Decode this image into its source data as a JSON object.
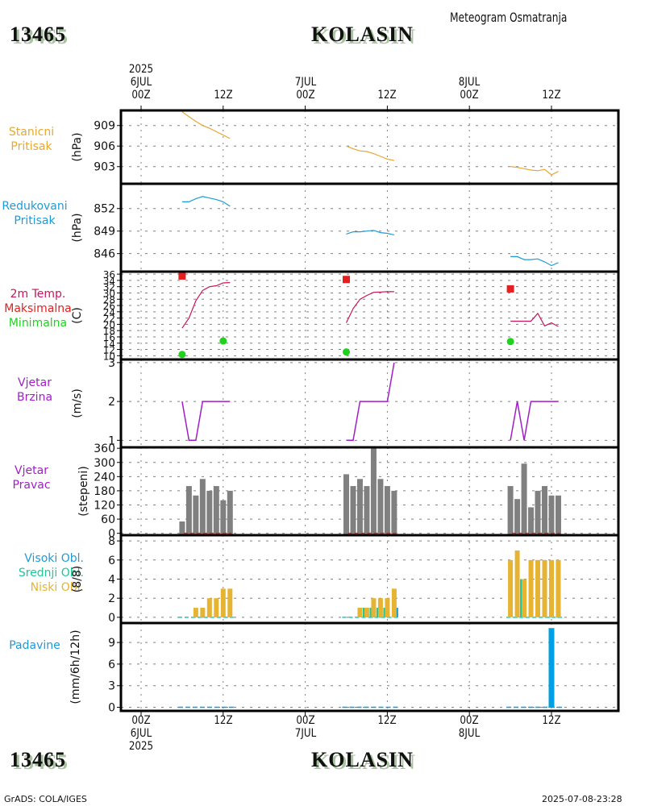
{
  "header": {
    "station_id": "13465",
    "station_name": "KOLASIN",
    "title": "Meteogram Osmatranja"
  },
  "footer": {
    "station_id": "13465",
    "station_name": "KOLASIN",
    "credit": "GrADS: COLA/IGES",
    "timestamp": "2025-07-08-23:28"
  },
  "time_axis": {
    "start_year": "2025",
    "ticks": [
      {
        "hour": 0,
        "label": "00Z",
        "date": "6JUL"
      },
      {
        "hour": 12,
        "label": "12Z",
        "date": ""
      },
      {
        "hour": 24,
        "label": "00Z",
        "date": "7JUL"
      },
      {
        "hour": 36,
        "label": "12Z",
        "date": ""
      },
      {
        "hour": 48,
        "label": "00Z",
        "date": "8JUL"
      },
      {
        "hour": 60,
        "label": "12Z",
        "date": ""
      }
    ],
    "range_hours": [
      -3,
      70
    ]
  },
  "panels": {
    "station_pressure": {
      "label1": "Stanicni",
      "label2": "Pritisak",
      "unit": "(hPa)",
      "color": "#e6a832"
    },
    "reduced_pressure": {
      "label1": "Redukovani",
      "label2": "Pritisak",
      "unit": "(hPa)",
      "color": "#1e9bd7"
    },
    "temperature": {
      "label1": "2m Temp.",
      "label2": "Maksimalna",
      "label3": "Minimalna",
      "unit": "(C)",
      "color_temp": "#c8145a",
      "color_max": "#e61e1e",
      "color_min": "#1ed21e"
    },
    "wind_speed": {
      "label1": "Vjetar",
      "label2": "Brzina",
      "unit": "(m/s)",
      "color": "#a01ec8"
    },
    "wind_dir": {
      "label1": "Vjetar",
      "label2": "Pravac",
      "unit": "(stepeni)",
      "color": "#a01ec8",
      "bar_color": "#808080"
    },
    "clouds": {
      "label1": "Visoki Obl.",
      "label2": "Srednji Obl.",
      "label3": "Niski Obl.",
      "unit": "(8/8)",
      "color_high": "#1e9bd7",
      "color_mid": "#1ec896",
      "color_low": "#e6b432"
    },
    "precip": {
      "label1": "Padavine",
      "unit": "(mm/6h/12h)",
      "color": "#00a0e6"
    }
  },
  "chart_data": [
    {
      "type": "line",
      "title": "Stanicni Pritisak",
      "ylabel": "(hPa)",
      "yticks": [
        903,
        906,
        909
      ],
      "ylim": [
        900.5,
        911.2
      ],
      "grid": true,
      "series": [
        {
          "name": "Stanicni Pritisak",
          "segments": [
            {
              "x": [
                6,
                7,
                8,
                9,
                10,
                11,
                12,
                13
              ],
              "y": [
                911.0,
                910.3,
                909.6,
                909.0,
                908.6,
                908.1,
                907.6,
                907.1
              ]
            },
            {
              "x": [
                30,
                31,
                32,
                33,
                34,
                35,
                36,
                37
              ],
              "y": [
                906.0,
                905.6,
                905.3,
                905.2,
                904.9,
                904.5,
                904.1,
                903.9
              ]
            },
            {
              "x": [
                54,
                55,
                56,
                57,
                58,
                59,
                60,
                61
              ],
              "y": [
                903.0,
                902.9,
                902.7,
                902.5,
                902.4,
                902.6,
                901.8,
                902.3
              ]
            }
          ]
        }
      ]
    },
    {
      "type": "line",
      "title": "Redukovani Pritisak",
      "ylabel": "(hPa)",
      "yticks": [
        846,
        849,
        852
      ],
      "ylim": [
        843.6,
        855.3
      ],
      "grid": true,
      "series": [
        {
          "name": "Redukovani Pritisak",
          "segments": [
            {
              "x": [
                6,
                7,
                8,
                9,
                10,
                11,
                12,
                13
              ],
              "y": [
                852.9,
                852.9,
                853.3,
                853.6,
                853.4,
                853.2,
                852.9,
                852.3
              ]
            },
            {
              "x": [
                30,
                31,
                32,
                33,
                34,
                35,
                36,
                37
              ],
              "y": [
                848.6,
                848.9,
                848.9,
                849.0,
                849.1,
                848.8,
                848.7,
                848.5
              ]
            },
            {
              "x": [
                54,
                55,
                56,
                57,
                58,
                59,
                60,
                61
              ],
              "y": [
                845.6,
                845.6,
                845.2,
                845.2,
                845.3,
                844.9,
                844.4,
                844.8
              ]
            }
          ]
        }
      ]
    },
    {
      "type": "line",
      "title": "2m Temp. / Maksimalna / Minimalna",
      "ylabel": "(C)",
      "yticks": [
        10,
        12,
        14,
        16,
        18,
        20,
        22,
        24,
        26,
        28,
        30,
        32,
        34,
        36
      ],
      "ylim": [
        8.8,
        36.8
      ],
      "grid": true,
      "series": [
        {
          "name": "2m Temp.",
          "segments": [
            {
              "x": [
                6,
                7,
                8,
                9,
                10,
                11,
                12,
                13
              ],
              "y": [
                18.8,
                22.0,
                27.5,
                30.8,
                32.0,
                32.3,
                33.2,
                33.3
              ]
            },
            {
              "x": [
                30,
                31,
                32,
                33,
                34,
                35,
                36,
                37
              ],
              "y": [
                20.5,
                25.0,
                28.0,
                29.2,
                30.2,
                30.3,
                30.4,
                30.4
              ]
            },
            {
              "x": [
                54,
                55,
                56,
                57,
                58,
                59,
                60,
                61
              ],
              "y": [
                21.0,
                21.0,
                21.0,
                21.0,
                23.5,
                19.5,
                20.5,
                19.3
              ]
            }
          ]
        },
        {
          "name": "Maksimalna",
          "points": [
            {
              "x": 6,
              "y": 35.4
            },
            {
              "x": 30,
              "y": 34.3
            },
            {
              "x": 54,
              "y": 31.3
            }
          ]
        },
        {
          "name": "Minimalna",
          "points": [
            {
              "x": 6,
              "y": 10.4
            },
            {
              "x": 12,
              "y": 14.7
            },
            {
              "x": 30,
              "y": 11.2
            },
            {
              "x": 54,
              "y": 14.5
            }
          ]
        }
      ]
    },
    {
      "type": "line",
      "title": "Vjetar Brzina",
      "ylabel": "(m/s)",
      "yticks": [
        1,
        2,
        3
      ],
      "ylim": [
        0.82,
        3.08
      ],
      "grid": true,
      "series": [
        {
          "name": "Vjetar Brzina",
          "segments": [
            {
              "x": [
                6,
                7,
                8,
                9,
                10,
                11,
                12,
                13
              ],
              "y": [
                2,
                1,
                1,
                2,
                2,
                2,
                2,
                2
              ]
            },
            {
              "x": [
                30,
                31,
                32,
                33,
                34,
                35,
                36,
                37
              ],
              "y": [
                1,
                1,
                2,
                2,
                2,
                2,
                2,
                3
              ]
            },
            {
              "x": [
                54,
                55,
                56,
                57,
                58,
                59,
                60,
                61
              ],
              "y": [
                1,
                2,
                1,
                2,
                2,
                2,
                2,
                2
              ]
            }
          ]
        }
      ]
    },
    {
      "type": "bar",
      "title": "Vjetar Pravac",
      "ylabel": "(stepeni)",
      "yticks": [
        0,
        60,
        120,
        180,
        240,
        300,
        360
      ],
      "ylim": [
        -8,
        364
      ],
      "grid": true,
      "series": [
        {
          "name": "Vjetar Pravac",
          "x": [
            6,
            7,
            8,
            9,
            10,
            11,
            12,
            13,
            30,
            31,
            32,
            33,
            34,
            35,
            36,
            37,
            54,
            55,
            56,
            57,
            58,
            59,
            60,
            61
          ],
          "values": [
            50,
            200,
            160,
            230,
            180,
            200,
            140,
            180,
            250,
            200,
            230,
            200,
            360,
            230,
            200,
            180,
            200,
            145,
            295,
            110,
            180,
            200,
            160,
            160
          ]
        }
      ]
    },
    {
      "type": "bar",
      "title": "Oblacnost",
      "ylabel": "(8/8)",
      "yticks": [
        0,
        2,
        4,
        6,
        8
      ],
      "ylim": [
        -0.6,
        8.6
      ],
      "grid": true,
      "x": [
        6,
        7,
        8,
        9,
        10,
        11,
        12,
        13,
        30,
        31,
        32,
        33,
        34,
        35,
        36,
        37,
        54,
        55,
        56,
        57,
        58,
        59,
        60,
        61
      ],
      "series": [
        {
          "name": "Visoki Obl.",
          "values": [
            0,
            0,
            0,
            0,
            0,
            0,
            0,
            0,
            0,
            0,
            0,
            0,
            0,
            0,
            0,
            1,
            0,
            0,
            0,
            0,
            0,
            0,
            0,
            0
          ]
        },
        {
          "name": "Srednji Obl.",
          "values": [
            0,
            0,
            0,
            0,
            0,
            0,
            0,
            0,
            0,
            0,
            0,
            1,
            1,
            1,
            1,
            0,
            0,
            0,
            4,
            0,
            0,
            0,
            0,
            0
          ]
        },
        {
          "name": "Niski Obl.",
          "values": [
            0,
            0,
            1,
            1,
            2,
            2,
            3,
            3,
            0,
            0,
            1,
            1,
            2,
            2,
            2,
            3,
            6,
            7,
            4,
            6,
            6,
            6,
            6,
            6
          ]
        }
      ]
    },
    {
      "type": "bar",
      "title": "Padavine",
      "ylabel": "(mm/6h/12h)",
      "yticks": [
        0,
        3,
        6,
        9
      ],
      "ylim": [
        -0.5,
        11.7
      ],
      "grid": true,
      "series": [
        {
          "name": "Padavine",
          "x": [
            6,
            7,
            8,
            9,
            10,
            11,
            12,
            13,
            30,
            31,
            32,
            33,
            34,
            35,
            36,
            37,
            54,
            55,
            56,
            57,
            58,
            59,
            60,
            61
          ],
          "values": [
            0,
            0,
            0,
            0,
            0,
            0,
            0,
            0,
            0,
            0,
            0,
            0,
            0,
            0,
            0,
            0,
            0,
            0,
            0,
            0,
            0,
            0,
            11,
            0
          ]
        }
      ]
    }
  ]
}
